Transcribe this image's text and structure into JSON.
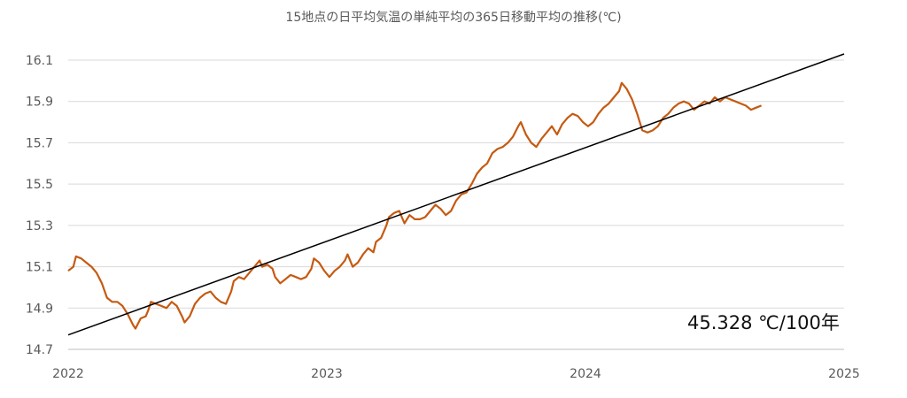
{
  "chart_data": {
    "type": "line",
    "title": "15地点の日平均気温の単純平均の365日移動平均の推移(℃)",
    "xlabel": "",
    "ylabel": "",
    "ylim": [
      14.7,
      16.1
    ],
    "yticks": [
      "16.1",
      "15.9",
      "15.7",
      "15.5",
      "15.3",
      "15.1",
      "14.9",
      "14.7"
    ],
    "xlim": [
      2022,
      2025
    ],
    "xticks": [
      "2022",
      "2023",
      "2024",
      "2025"
    ],
    "grid": "horizontal",
    "annotation": "45.328 ℃/100年",
    "colors": {
      "series": "#C55A11",
      "trend": "#000000",
      "grid": "#D9D9D9",
      "text": "#595959"
    },
    "series": [
      {
        "points": [
          [
            2022.0,
            15.08
          ],
          [
            2022.02,
            15.1
          ],
          [
            2022.03,
            15.15
          ],
          [
            2022.05,
            15.14
          ],
          [
            2022.07,
            15.12
          ],
          [
            2022.09,
            15.1
          ],
          [
            2022.11,
            15.07
          ],
          [
            2022.13,
            15.02
          ],
          [
            2022.15,
            14.95
          ],
          [
            2022.17,
            14.93
          ],
          [
            2022.19,
            14.93
          ],
          [
            2022.21,
            14.91
          ],
          [
            2022.23,
            14.87
          ],
          [
            2022.25,
            14.82
          ],
          [
            2022.26,
            14.8
          ],
          [
            2022.28,
            14.85
          ],
          [
            2022.3,
            14.86
          ],
          [
            2022.31,
            14.89
          ],
          [
            2022.32,
            14.93
          ],
          [
            2022.34,
            14.92
          ],
          [
            2022.36,
            14.91
          ],
          [
            2022.38,
            14.9
          ],
          [
            2022.4,
            14.93
          ],
          [
            2022.42,
            14.91
          ],
          [
            2022.44,
            14.86
          ],
          [
            2022.45,
            14.83
          ],
          [
            2022.47,
            14.86
          ],
          [
            2022.49,
            14.92
          ],
          [
            2022.51,
            14.95
          ],
          [
            2022.53,
            14.97
          ],
          [
            2022.55,
            14.98
          ],
          [
            2022.57,
            14.95
          ],
          [
            2022.59,
            14.93
          ],
          [
            2022.61,
            14.92
          ],
          [
            2022.63,
            14.98
          ],
          [
            2022.64,
            15.03
          ],
          [
            2022.66,
            15.05
          ],
          [
            2022.68,
            15.04
          ],
          [
            2022.7,
            15.07
          ],
          [
            2022.72,
            15.1
          ],
          [
            2022.74,
            15.13
          ],
          [
            2022.75,
            15.1
          ],
          [
            2022.77,
            15.11
          ],
          [
            2022.79,
            15.09
          ],
          [
            2022.8,
            15.05
          ],
          [
            2022.82,
            15.02
          ],
          [
            2022.84,
            15.04
          ],
          [
            2022.86,
            15.06
          ],
          [
            2022.88,
            15.05
          ],
          [
            2022.9,
            15.04
          ],
          [
            2022.92,
            15.05
          ],
          [
            2022.94,
            15.09
          ],
          [
            2022.95,
            15.14
          ],
          [
            2022.97,
            15.12
          ],
          [
            2022.99,
            15.08
          ],
          [
            2023.01,
            15.05
          ],
          [
            2023.03,
            15.08
          ],
          [
            2023.05,
            15.1
          ],
          [
            2023.07,
            15.13
          ],
          [
            2023.08,
            15.16
          ],
          [
            2023.1,
            15.1
          ],
          [
            2023.12,
            15.12
          ],
          [
            2023.14,
            15.16
          ],
          [
            2023.16,
            15.19
          ],
          [
            2023.18,
            15.17
          ],
          [
            2023.19,
            15.22
          ],
          [
            2023.21,
            15.24
          ],
          [
            2023.23,
            15.3
          ],
          [
            2023.24,
            15.34
          ],
          [
            2023.26,
            15.36
          ],
          [
            2023.28,
            15.37
          ],
          [
            2023.3,
            15.31
          ],
          [
            2023.32,
            15.35
          ],
          [
            2023.34,
            15.33
          ],
          [
            2023.36,
            15.33
          ],
          [
            2023.38,
            15.34
          ],
          [
            2023.4,
            15.37
          ],
          [
            2023.42,
            15.4
          ],
          [
            2023.44,
            15.38
          ],
          [
            2023.46,
            15.35
          ],
          [
            2023.48,
            15.37
          ],
          [
            2023.5,
            15.42
          ],
          [
            2023.52,
            15.45
          ],
          [
            2023.54,
            15.46
          ],
          [
            2023.56,
            15.5
          ],
          [
            2023.58,
            15.55
          ],
          [
            2023.6,
            15.58
          ],
          [
            2023.62,
            15.6
          ],
          [
            2023.64,
            15.65
          ],
          [
            2023.66,
            15.67
          ],
          [
            2023.68,
            15.68
          ],
          [
            2023.7,
            15.7
          ],
          [
            2023.72,
            15.73
          ],
          [
            2023.74,
            15.78
          ],
          [
            2023.75,
            15.8
          ],
          [
            2023.77,
            15.74
          ],
          [
            2023.79,
            15.7
          ],
          [
            2023.81,
            15.68
          ],
          [
            2023.83,
            15.72
          ],
          [
            2023.85,
            15.75
          ],
          [
            2023.87,
            15.78
          ],
          [
            2023.89,
            15.74
          ],
          [
            2023.91,
            15.79
          ],
          [
            2023.93,
            15.82
          ],
          [
            2023.95,
            15.84
          ],
          [
            2023.97,
            15.83
          ],
          [
            2023.99,
            15.8
          ],
          [
            2024.01,
            15.78
          ],
          [
            2024.03,
            15.8
          ],
          [
            2024.05,
            15.84
          ],
          [
            2024.07,
            15.87
          ],
          [
            2024.09,
            15.89
          ],
          [
            2024.11,
            15.92
          ],
          [
            2024.13,
            15.95
          ],
          [
            2024.14,
            15.99
          ],
          [
            2024.16,
            15.96
          ],
          [
            2024.18,
            15.91
          ],
          [
            2024.2,
            15.84
          ],
          [
            2024.22,
            15.76
          ],
          [
            2024.24,
            15.75
          ],
          [
            2024.26,
            15.76
          ],
          [
            2024.28,
            15.78
          ],
          [
            2024.3,
            15.82
          ],
          [
            2024.32,
            15.84
          ],
          [
            2024.34,
            15.87
          ],
          [
            2024.36,
            15.89
          ],
          [
            2024.38,
            15.9
          ],
          [
            2024.4,
            15.89
          ],
          [
            2024.42,
            15.86
          ],
          [
            2024.44,
            15.88
          ],
          [
            2024.46,
            15.9
          ],
          [
            2024.48,
            15.89
          ],
          [
            2024.5,
            15.92
          ],
          [
            2024.52,
            15.9
          ],
          [
            2024.54,
            15.92
          ],
          [
            2024.56,
            15.91
          ],
          [
            2024.58,
            15.9
          ],
          [
            2024.6,
            15.89
          ],
          [
            2024.62,
            15.88
          ],
          [
            2024.64,
            15.86
          ],
          [
            2024.66,
            15.87
          ],
          [
            2024.68,
            15.88
          ]
        ]
      },
      {
        "type": "trendline",
        "points": [
          [
            2022.0,
            14.77
          ],
          [
            2025.0,
            16.13
          ]
        ]
      }
    ]
  }
}
